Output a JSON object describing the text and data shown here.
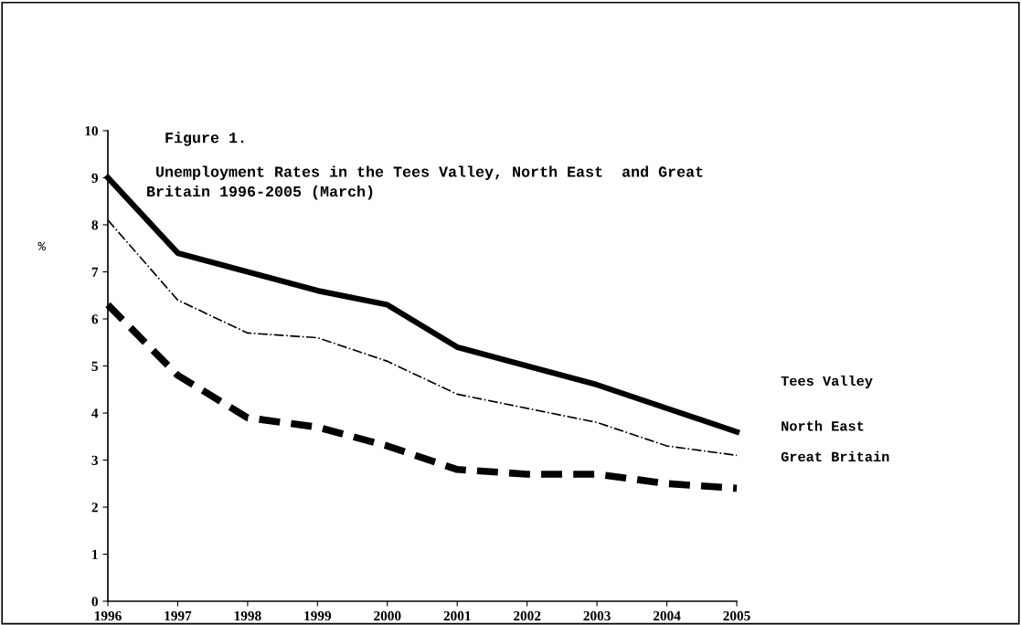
{
  "chart_data": {
    "type": "line",
    "title": "Figure 1.",
    "subtitle": " Unemployment Rates in the Tees Valley, North East  and Great\nBritain 1996-2005 (March)",
    "ylabel": "%",
    "x": [
      1996,
      1997,
      1998,
      1999,
      2000,
      2001,
      2002,
      2003,
      2004,
      2005
    ],
    "xlim": [
      1996,
      2005
    ],
    "xticks": [
      1996,
      1997,
      1998,
      1999,
      2000,
      2001,
      2002,
      2003,
      2004,
      2005
    ],
    "ylim": [
      0,
      10
    ],
    "yticks": [
      0,
      1,
      2,
      3,
      4,
      5,
      6,
      7,
      8,
      9,
      10
    ],
    "grid": false,
    "legend": false,
    "series": [
      {
        "name": "Tees Valley",
        "color": "#000000",
        "line_style": "solid",
        "values": [
          9.0,
          7.4,
          7.0,
          6.6,
          6.3,
          5.4,
          5.0,
          4.6,
          4.1,
          3.6
        ]
      },
      {
        "name": "North East",
        "color": "#000000",
        "line_style": "dashdot",
        "values": [
          8.1,
          6.4,
          5.7,
          5.6,
          5.1,
          4.4,
          4.1,
          3.8,
          3.3,
          3.1
        ]
      },
      {
        "name": "Great Britain",
        "color": "#000000",
        "line_style": "dashed",
        "values": [
          6.3,
          4.8,
          3.9,
          3.7,
          3.3,
          2.8,
          2.7,
          2.7,
          2.5,
          2.4
        ]
      }
    ]
  }
}
